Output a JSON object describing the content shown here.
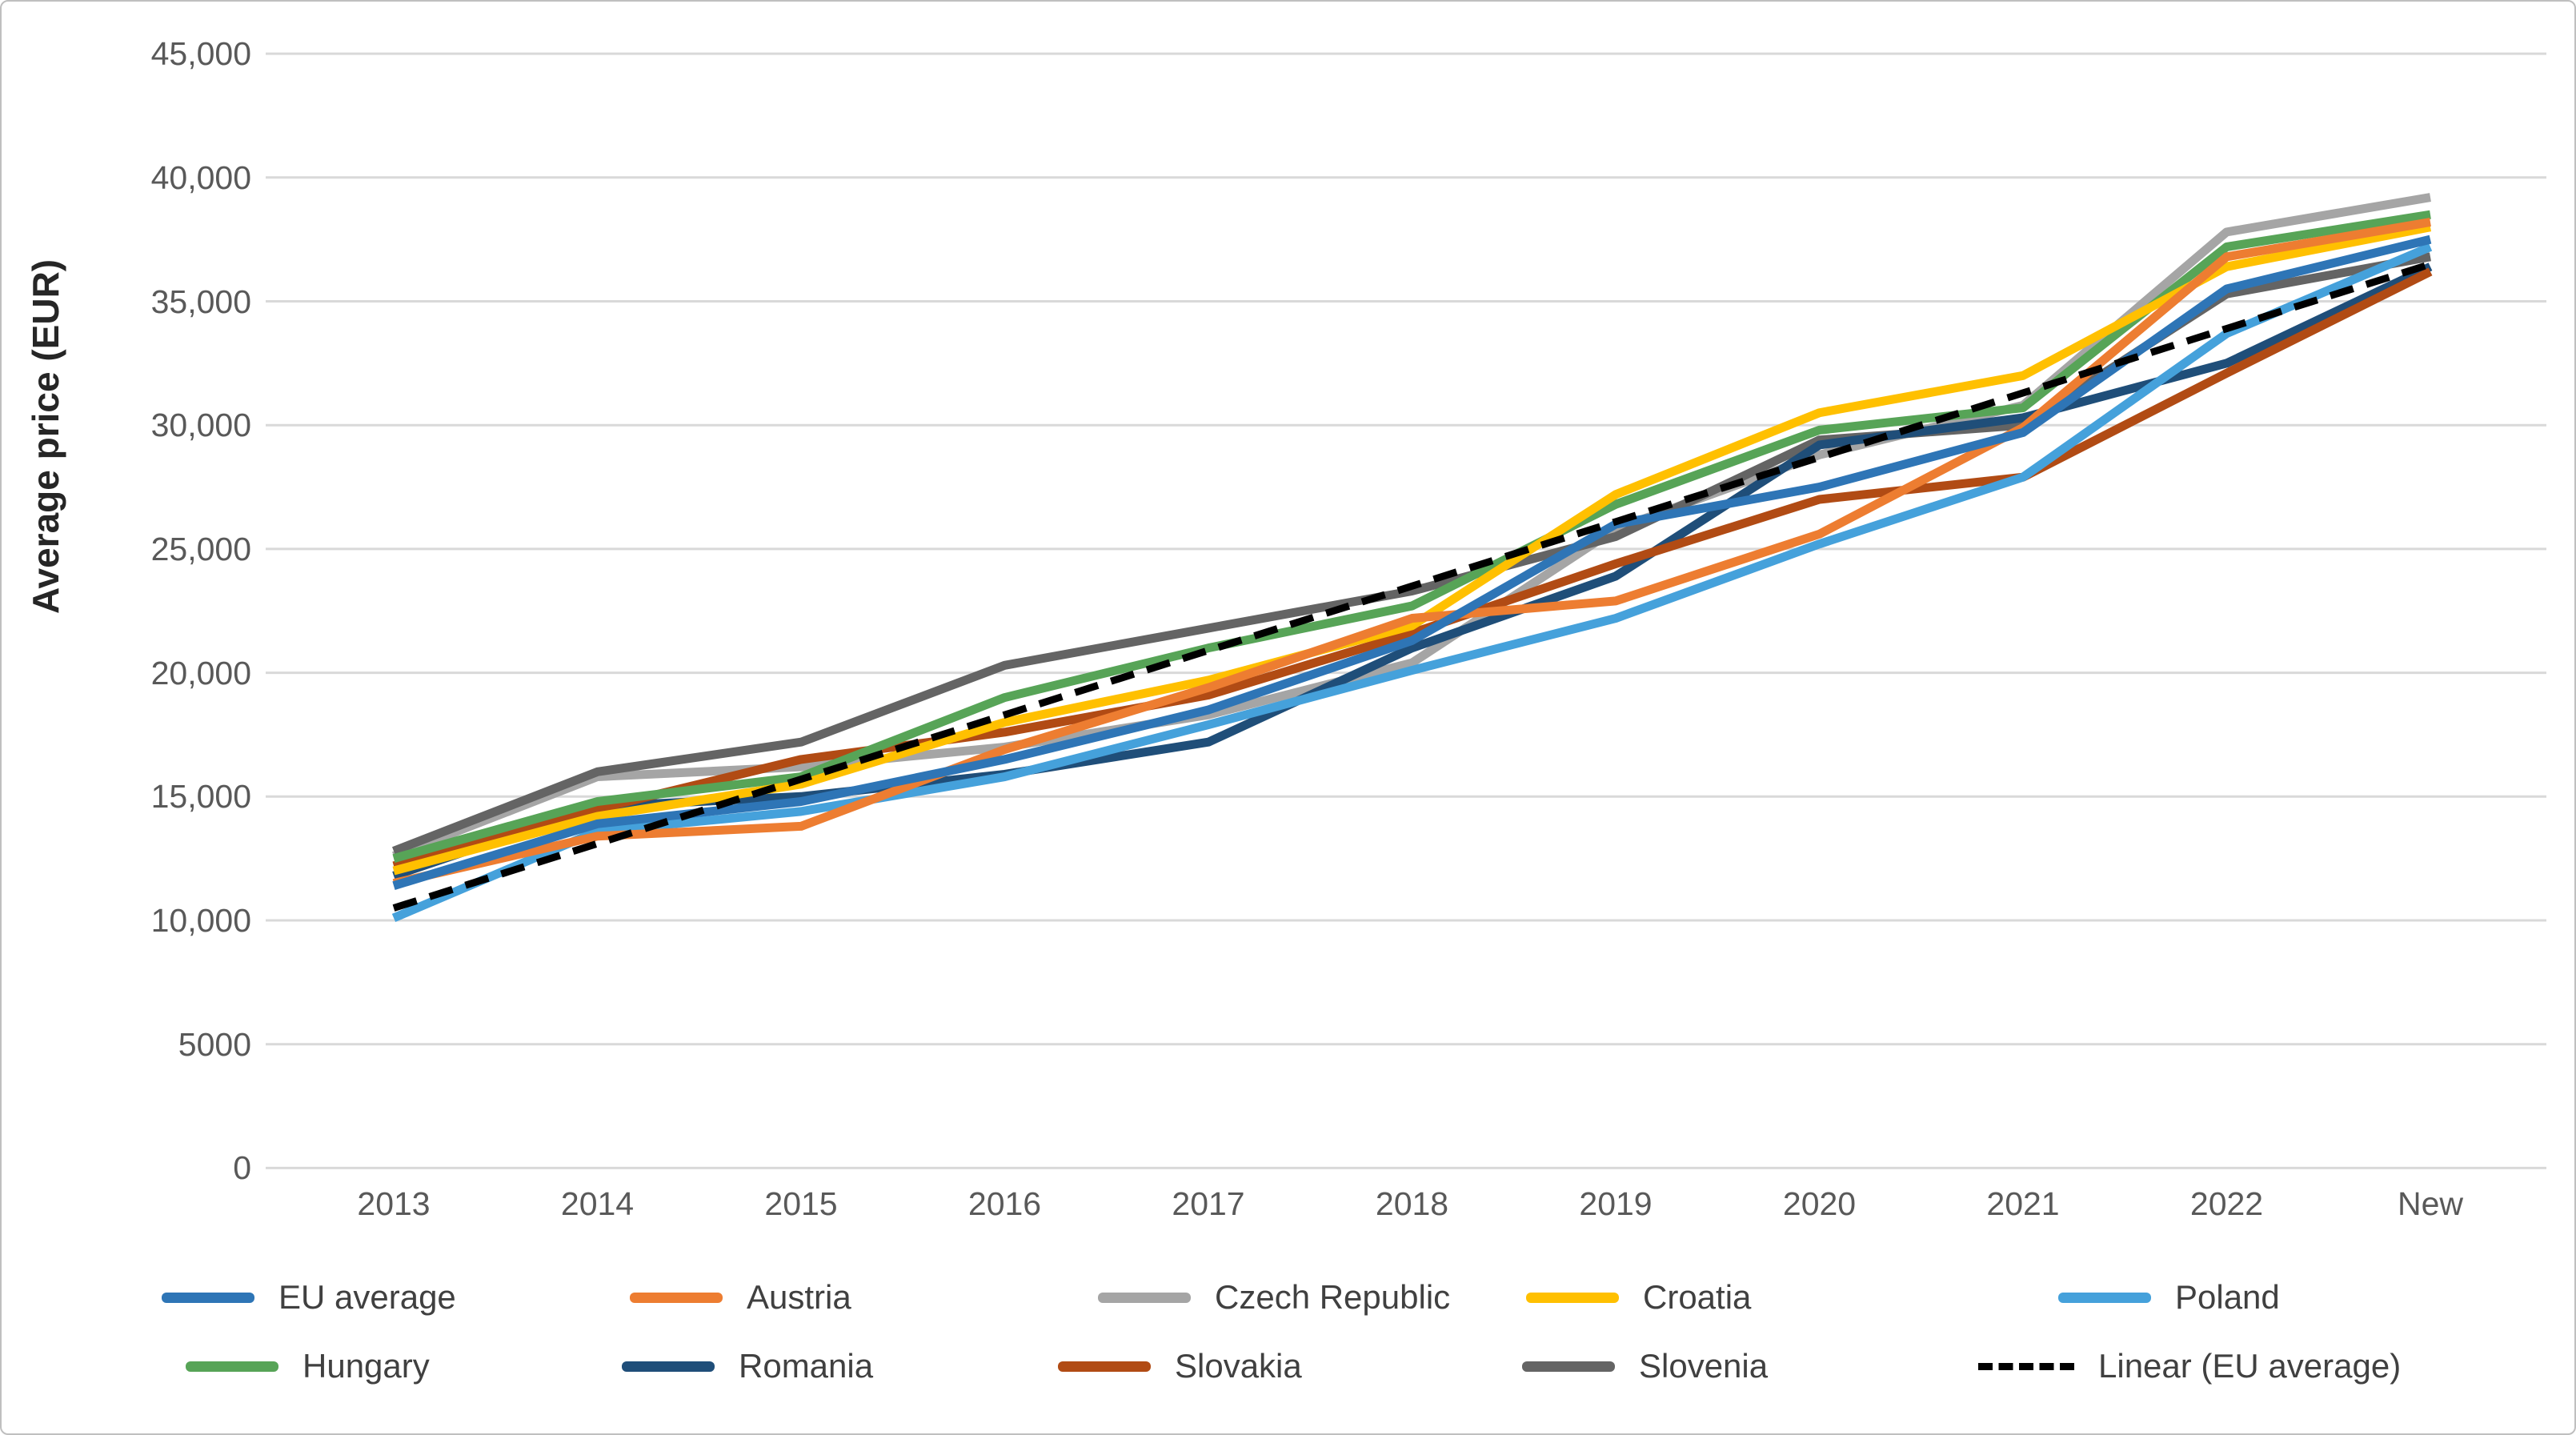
{
  "y_axis": {
    "title": "Average price (EUR)",
    "ticks": [
      {
        "label": "45,000",
        "value": 45000
      },
      {
        "label": "40,000",
        "value": 40000
      },
      {
        "label": "35,000",
        "value": 35000
      },
      {
        "label": "30,000",
        "value": 30000
      },
      {
        "label": "25,000",
        "value": 25000
      },
      {
        "label": "20,000",
        "value": 20000
      },
      {
        "label": "15,000",
        "value": 15000
      },
      {
        "label": "10,000",
        "value": 10000
      },
      {
        "label": "5000",
        "value": 5000
      },
      {
        "label": "0",
        "value": 0
      }
    ]
  },
  "x_axis": {
    "categories": [
      "2013",
      "2014",
      "2015",
      "2016",
      "2017",
      "2018",
      "2019",
      "2020",
      "2021",
      "2022",
      "New"
    ]
  },
  "colors": {
    "gridline": "#d9d9d9",
    "tick_text": "#595959",
    "legend_text": "#404040",
    "axis_title_text": "#262626"
  },
  "legend_rows": [
    [
      "EU average",
      "Austria",
      "Czech Republic",
      "Croatia",
      "Poland"
    ],
    [
      "Hungary",
      "Romania",
      "Slovakia",
      "Slovenia",
      "Linear (EU average)"
    ]
  ],
  "chart_data": {
    "type": "line",
    "title": "",
    "xlabel": "",
    "ylabel": "Average price (EUR)",
    "ylim": [
      0,
      45000
    ],
    "grid": true,
    "legend_position": "bottom",
    "categories": [
      "2013",
      "2014",
      "2015",
      "2016",
      "2017",
      "2018",
      "2019",
      "2020",
      "2021",
      "2022",
      "New"
    ],
    "series": [
      {
        "name": "EU average",
        "color": "#2e75b6",
        "dashed": false,
        "values": [
          11400,
          13900,
          14800,
          16500,
          18500,
          21300,
          26000,
          27500,
          29700,
          35500,
          37500
        ]
      },
      {
        "name": "Austria",
        "color": "#ed7d31",
        "dashed": false,
        "values": [
          11500,
          13400,
          13800,
          16900,
          19400,
          22200,
          22900,
          25600,
          29900,
          36800,
          38200
        ]
      },
      {
        "name": "Czech Republic",
        "color": "#a5a5a5",
        "dashed": false,
        "values": [
          12600,
          15800,
          16200,
          17000,
          18300,
          20400,
          25800,
          28800,
          30800,
          37800,
          39200
        ]
      },
      {
        "name": "Croatia",
        "color": "#ffc000",
        "dashed": false,
        "values": [
          12000,
          14200,
          15500,
          18000,
          19700,
          21900,
          27200,
          30500,
          32000,
          36400,
          38000
        ]
      },
      {
        "name": "Poland",
        "color": "#45a1db",
        "dashed": false,
        "values": [
          10100,
          13600,
          14400,
          15800,
          17900,
          20100,
          22200,
          25200,
          27900,
          33700,
          37200
        ]
      },
      {
        "name": "Hungary",
        "color": "#57a457",
        "dashed": false,
        "values": [
          12500,
          14800,
          15800,
          19000,
          21000,
          22700,
          26800,
          29800,
          30700,
          37200,
          38500
        ]
      },
      {
        "name": "Romania",
        "color": "#1f4e79",
        "dashed": false,
        "values": [
          11800,
          14600,
          15000,
          15900,
          17200,
          21000,
          23900,
          29200,
          30300,
          32500,
          36400
        ]
      },
      {
        "name": "Slovakia",
        "color": "#b14b14",
        "dashed": false,
        "values": [
          12200,
          14500,
          16500,
          17600,
          19100,
          21600,
          24400,
          27000,
          27900,
          32100,
          36200
        ]
      },
      {
        "name": "Slovenia",
        "color": "#646464",
        "dashed": false,
        "values": [
          12800,
          16000,
          17200,
          20300,
          21800,
          23300,
          25500,
          29400,
          30000,
          35300,
          36800
        ]
      },
      {
        "name": "Linear (EU average)",
        "color": "#000000",
        "dashed": true,
        "values": [
          10500,
          13100,
          15700,
          18300,
          20900,
          23500,
          26100,
          28700,
          31300,
          33900,
          36500
        ]
      }
    ]
  }
}
